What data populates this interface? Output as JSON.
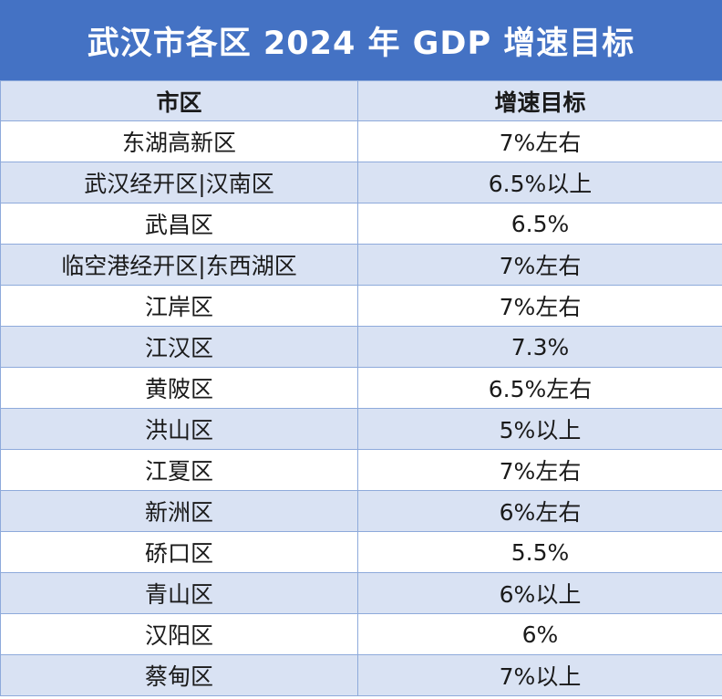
{
  "title": "武汉市各区 2024 年 GDP 增速目标",
  "headers": {
    "district": "市区",
    "target": "增速目标"
  },
  "rows": [
    {
      "district": "东湖高新区",
      "target": "7%左右"
    },
    {
      "district": "武汉经开区|汉南区",
      "target": "6.5%以上"
    },
    {
      "district": "武昌区",
      "target": "6.5%"
    },
    {
      "district": "临空港经开区|东西湖区",
      "target": "7%左右"
    },
    {
      "district": "江岸区",
      "target": "7%左右"
    },
    {
      "district": "江汉区",
      "target": "7.3%"
    },
    {
      "district": "黄陂区",
      "target": "6.5%左右"
    },
    {
      "district": "洪山区",
      "target": "5%以上"
    },
    {
      "district": "江夏区",
      "target": "7%左右"
    },
    {
      "district": "新洲区",
      "target": "6%左右"
    },
    {
      "district": "硚口区",
      "target": "5.5%"
    },
    {
      "district": "青山区",
      "target": "6%以上"
    },
    {
      "district": "汉阳区",
      "target": "6%"
    },
    {
      "district": "蔡甸区",
      "target": "7%以上"
    }
  ],
  "colors": {
    "title_background": "#4472c4",
    "header_background": "#d9e2f3",
    "stripe_background": "#d9e2f3",
    "border": "#8eaadb"
  }
}
